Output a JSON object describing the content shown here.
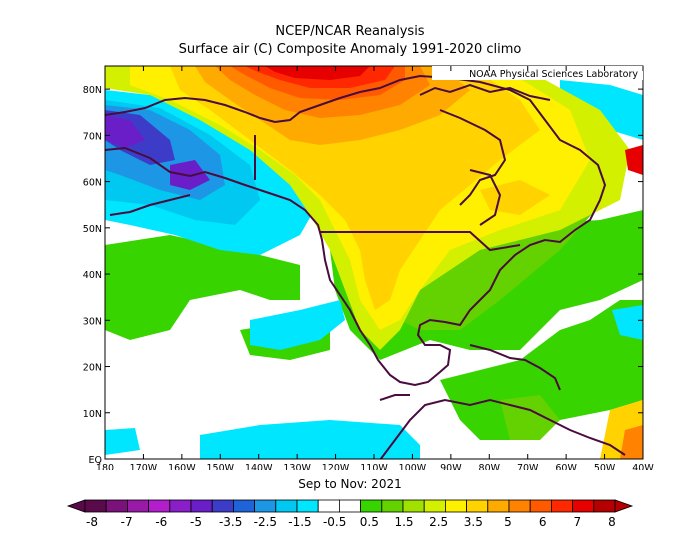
{
  "header": {
    "title": "NCEP/NCAR Reanalysis",
    "subtitle": "Surface air (C) Composite Anomaly 1991-2020 climo"
  },
  "credit": "NOAA Physical Sciences Laboratory",
  "period": "Sep to Nov: 2021",
  "map": {
    "variable": "Surface air temperature anomaly",
    "units": "C",
    "lat_range": [
      0,
      85
    ],
    "lon_range": [
      -180,
      -40
    ],
    "lat_ticks": [
      "EQ",
      "10N",
      "20N",
      "30N",
      "40N",
      "50N",
      "60N",
      "70N",
      "80N"
    ],
    "lon_ticks": [
      "180",
      "170W",
      "160W",
      "150W",
      "140W",
      "130W",
      "120W",
      "110W",
      "100W",
      "90W",
      "80W",
      "70W",
      "60W",
      "50W",
      "40W"
    ]
  },
  "colorbar": {
    "labels": [
      "-8",
      "-7",
      "-6",
      "-5",
      "-3.5",
      "-2.5",
      "-1.5",
      "-0.5",
      "0.5",
      "1.5",
      "2.5",
      "3.5",
      "5",
      "6",
      "7",
      "8"
    ],
    "colors": [
      "#5a0a4a",
      "#7a127a",
      "#9a1aa8",
      "#b21ecc",
      "#8a1ec8",
      "#6a1ec8",
      "#3c3cc8",
      "#1e64d8",
      "#1e96e6",
      "#00c8f0",
      "#00e6ff",
      "#ffffff",
      "#ffffff",
      "#37d400",
      "#64d200",
      "#a0e100",
      "#d2f000",
      "#fff000",
      "#ffd200",
      "#ffaa00",
      "#ff8200",
      "#ff5a00",
      "#ff2800",
      "#e60000",
      "#b40000"
    ]
  }
}
